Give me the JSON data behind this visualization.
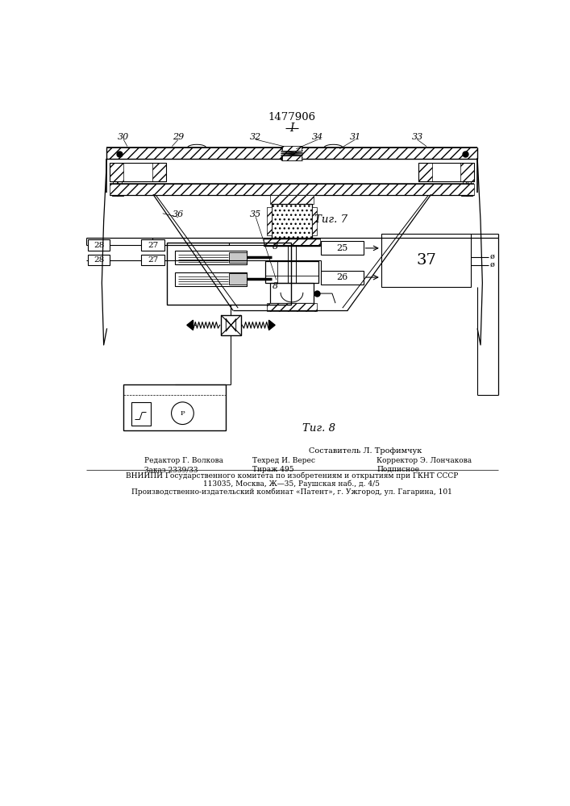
{
  "patent_number": "1477906",
  "fig7_caption": "Τиг. 7",
  "fig8_caption": "Τиг. 8",
  "footer_line0": "Составитель Л. Трофимчук",
  "footer_col1_line1": "Редактор Г. Волкова",
  "footer_col1_line2": "Заказ 2339/33",
  "footer_col2_line1": "Техред И. Верес",
  "footer_col2_line2": "Тираж 495",
  "footer_col3_line1": "Корректор Э. Лончакова",
  "footer_col3_line2": "Подписное",
  "footer_vniip": "ВНИИПИ Государственного комитета по изобретениям и открытиям при ГКНТ СССР",
  "footer_addr1": "113035, Москва, Ж—35, Раушская наб., д. 4/5",
  "footer_addr2": "Производственно-издательский комбинат «Патент», г. Ужгород, ул. Гагарина, 101",
  "bg_color": "#ffffff"
}
